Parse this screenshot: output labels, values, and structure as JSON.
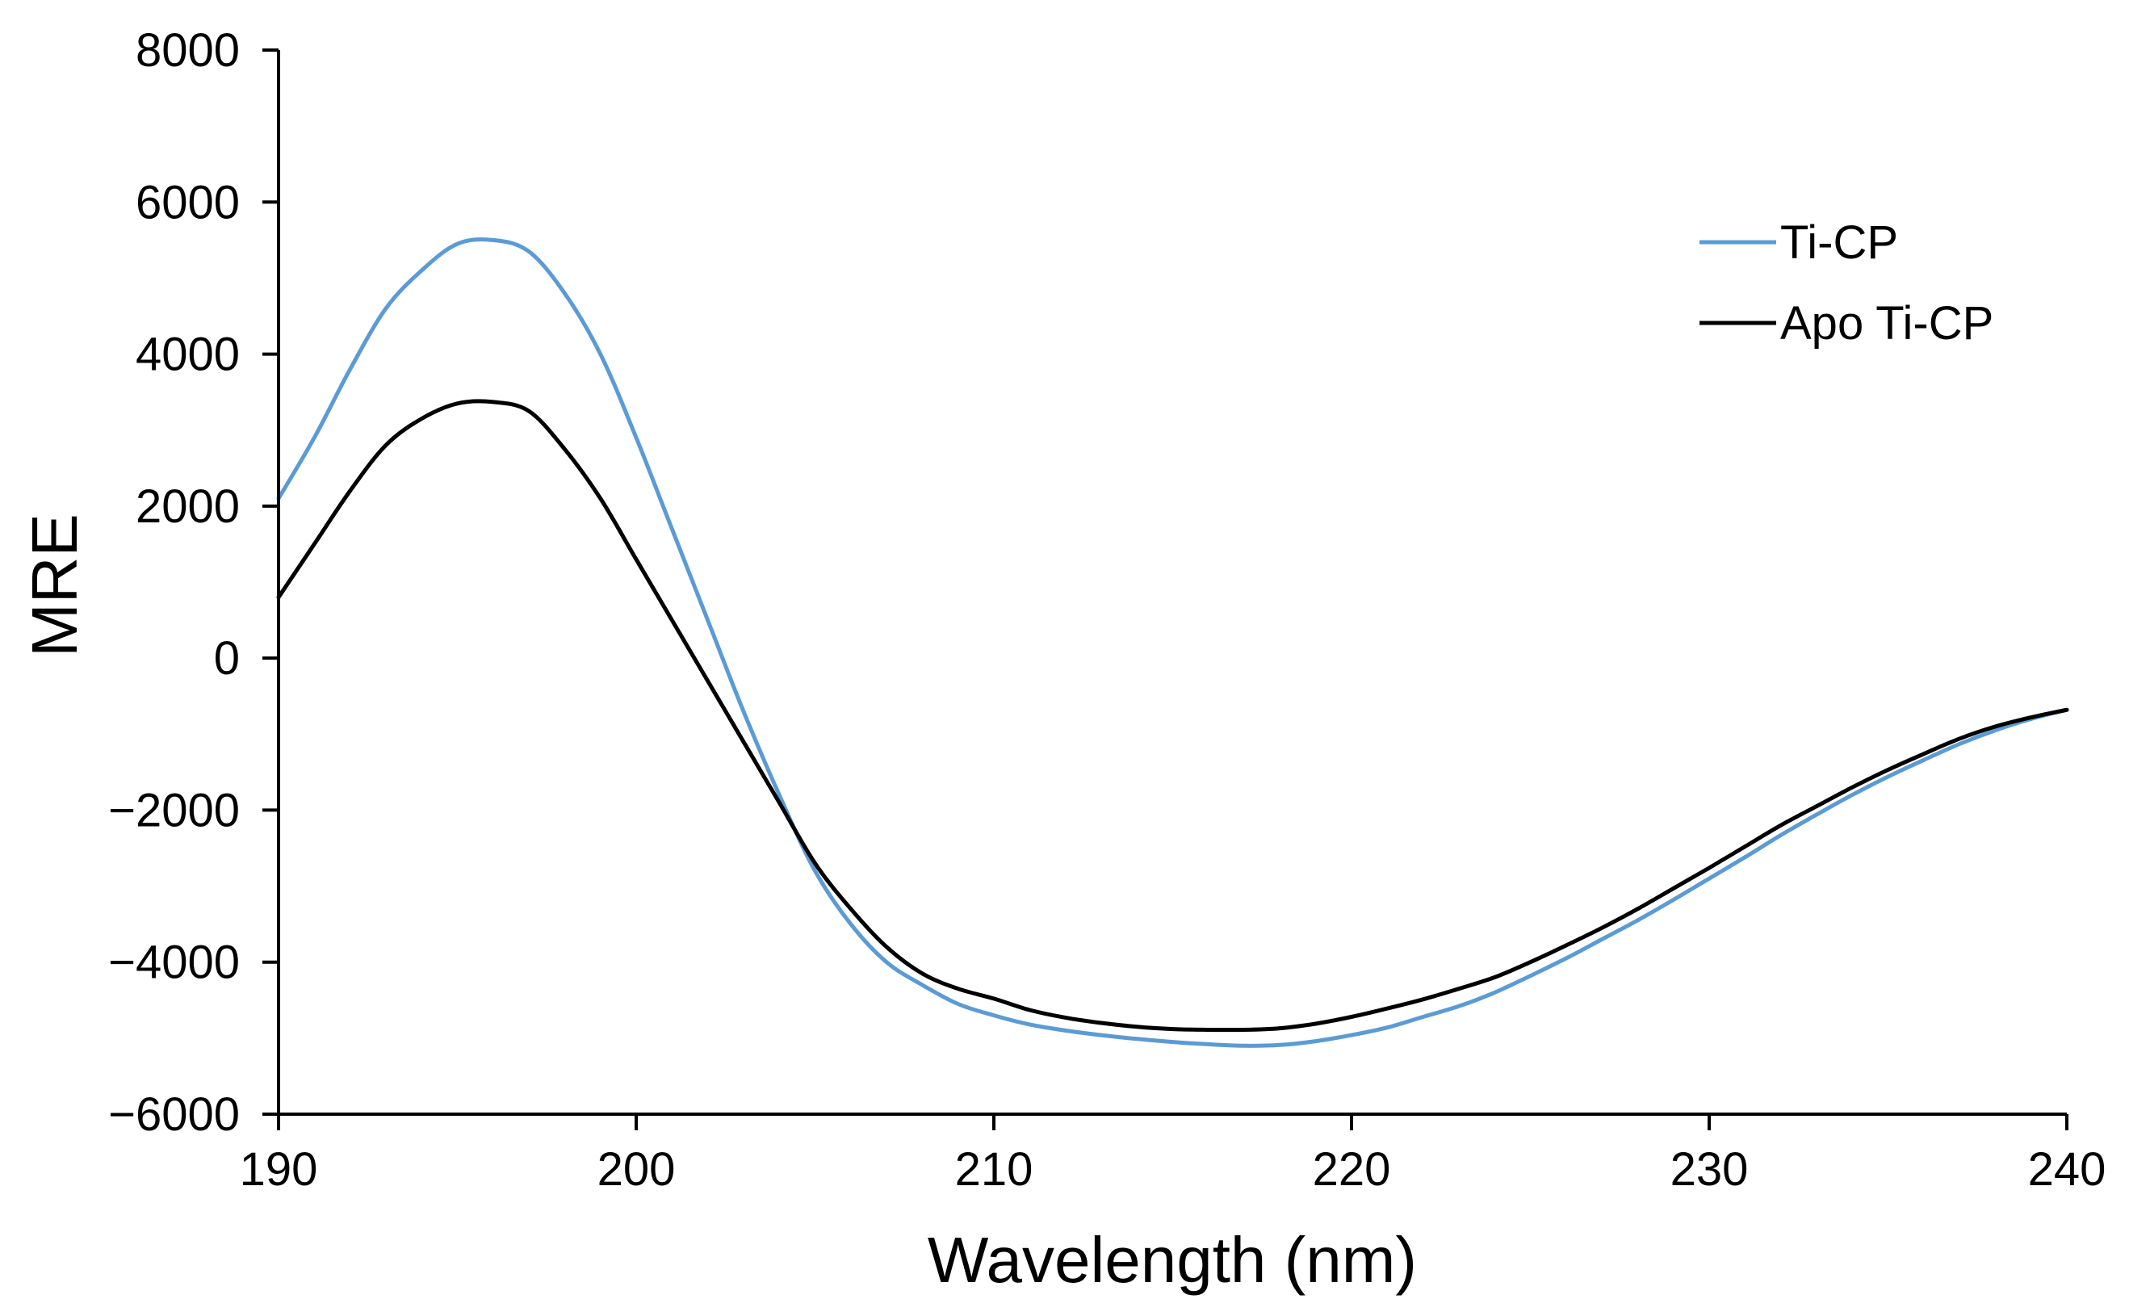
{
  "chart_data": {
    "type": "line",
    "title": "",
    "xlabel": "Wavelength (nm)",
    "ylabel": "MRE",
    "xlim": [
      190,
      240
    ],
    "ylim": [
      -6000,
      8000
    ],
    "xticks": [
      190,
      200,
      210,
      220,
      230,
      240
    ],
    "yticks": [
      8000,
      6000,
      4000,
      2000,
      0,
      -2000,
      -4000,
      -6000
    ],
    "xtick_labels": [
      "190",
      "200",
      "210",
      "220",
      "230",
      "240"
    ],
    "ytick_labels": [
      "8000",
      "6000",
      "4000",
      "2000",
      "0",
      "−2000",
      "−4000",
      "−6000"
    ],
    "grid": false,
    "legend_position": "top-right",
    "series": [
      {
        "name": "Ti-CP",
        "color": "#5b9bd5",
        "x": [
          190,
          191,
          192,
          193,
          194,
          195,
          196,
          197,
          198,
          199,
          200,
          201,
          202,
          203,
          204,
          205,
          206,
          207,
          208,
          209,
          210,
          211,
          212,
          213,
          214,
          215,
          216,
          217,
          218,
          219,
          220,
          221,
          222,
          223,
          224,
          225,
          226,
          227,
          228,
          229,
          230,
          231,
          232,
          233,
          234,
          235,
          236,
          237,
          238,
          239,
          240
        ],
        "y": [
          2100,
          2900,
          3800,
          4600,
          5100,
          5450,
          5500,
          5350,
          4800,
          4000,
          2900,
          1700,
          500,
          -700,
          -1800,
          -2800,
          -3500,
          -4000,
          -4300,
          -4550,
          -4700,
          -4820,
          -4900,
          -4960,
          -5010,
          -5050,
          -5080,
          -5100,
          -5090,
          -5040,
          -4960,
          -4860,
          -4720,
          -4580,
          -4400,
          -4180,
          -3950,
          -3700,
          -3450,
          -3180,
          -2900,
          -2620,
          -2330,
          -2060,
          -1800,
          -1560,
          -1340,
          -1130,
          -950,
          -800,
          -680
        ]
      },
      {
        "name": "Apo Ti-CP",
        "color": "#000000",
        "x": [
          190,
          191,
          192,
          193,
          194,
          195,
          196,
          197,
          198,
          199,
          200,
          201,
          202,
          203,
          204,
          205,
          206,
          207,
          208,
          209,
          210,
          211,
          212,
          213,
          214,
          215,
          216,
          217,
          218,
          219,
          220,
          221,
          222,
          223,
          224,
          225,
          226,
          227,
          228,
          229,
          230,
          231,
          232,
          233,
          234,
          235,
          236,
          237,
          238,
          239,
          240
        ],
        "y": [
          800,
          1500,
          2200,
          2800,
          3150,
          3350,
          3370,
          3250,
          2750,
          2100,
          1300,
          500,
          -300,
          -1100,
          -1900,
          -2700,
          -3300,
          -3800,
          -4150,
          -4350,
          -4480,
          -4630,
          -4730,
          -4800,
          -4850,
          -4880,
          -4890,
          -4890,
          -4870,
          -4810,
          -4720,
          -4610,
          -4490,
          -4350,
          -4200,
          -4000,
          -3780,
          -3550,
          -3300,
          -3030,
          -2760,
          -2480,
          -2200,
          -1950,
          -1700,
          -1470,
          -1260,
          -1060,
          -900,
          -780,
          -680
        ]
      }
    ]
  }
}
